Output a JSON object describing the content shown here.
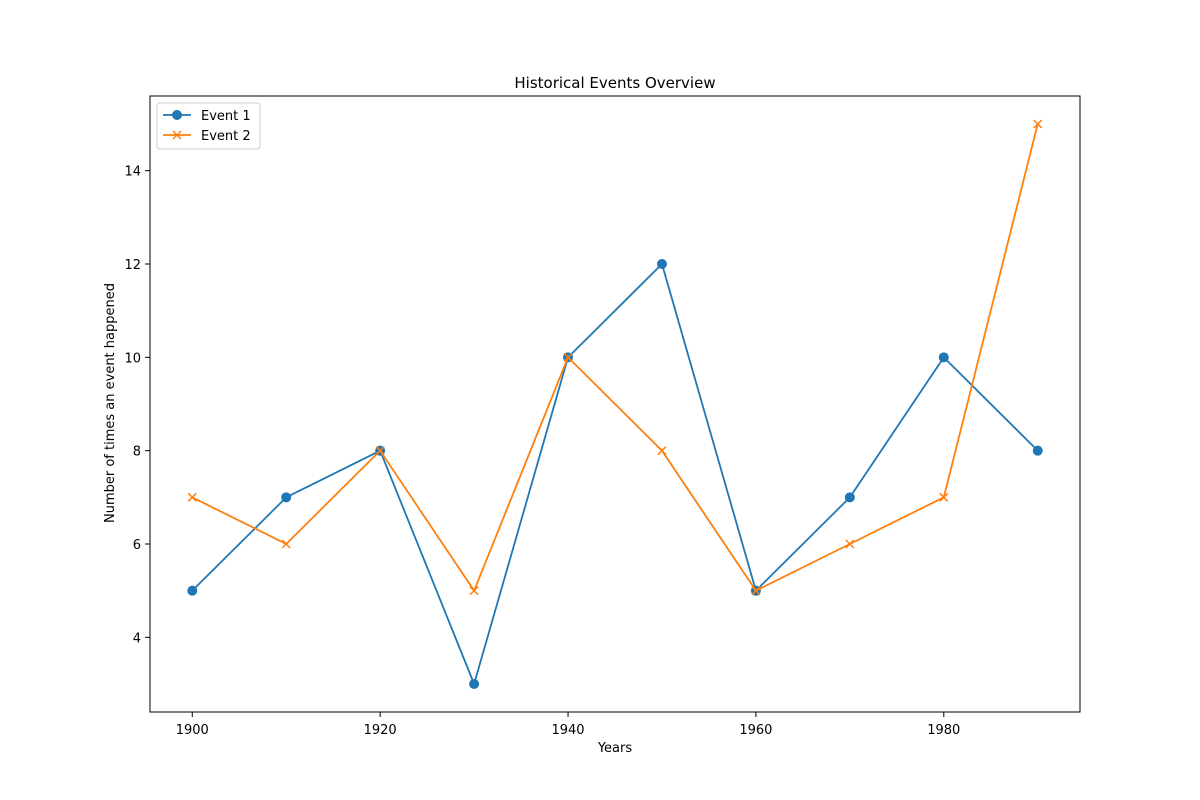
{
  "chart_data": {
    "type": "line",
    "title": "Historical Events Overview",
    "xlabel": "Years",
    "ylabel": "Number of times an event happened",
    "x": [
      1900,
      1910,
      1920,
      1930,
      1940,
      1950,
      1960,
      1970,
      1980,
      1990
    ],
    "xlim": [
      1895.5,
      1994.5
    ],
    "ylim": [
      2.4,
      15.6
    ],
    "x_ticks": [
      1900,
      1920,
      1940,
      1960,
      1980
    ],
    "x_tick_labels": [
      "1900",
      "1920",
      "1940",
      "1960",
      "1980"
    ],
    "y_ticks": [
      4,
      6,
      8,
      10,
      12,
      14
    ],
    "y_tick_labels": [
      "4",
      "6",
      "8",
      "10",
      "12",
      "14"
    ],
    "grid": false,
    "legend_position": "top-left",
    "series": [
      {
        "name": "Event 1",
        "values": [
          5,
          7,
          8,
          3,
          10,
          12,
          5,
          7,
          10,
          8
        ],
        "color": "#1f77b4",
        "marker": "circle"
      },
      {
        "name": "Event 2",
        "values": [
          7,
          6,
          8,
          5,
          10,
          8,
          5,
          6,
          7,
          15
        ],
        "color": "#ff7f0e",
        "marker": "x"
      }
    ]
  }
}
